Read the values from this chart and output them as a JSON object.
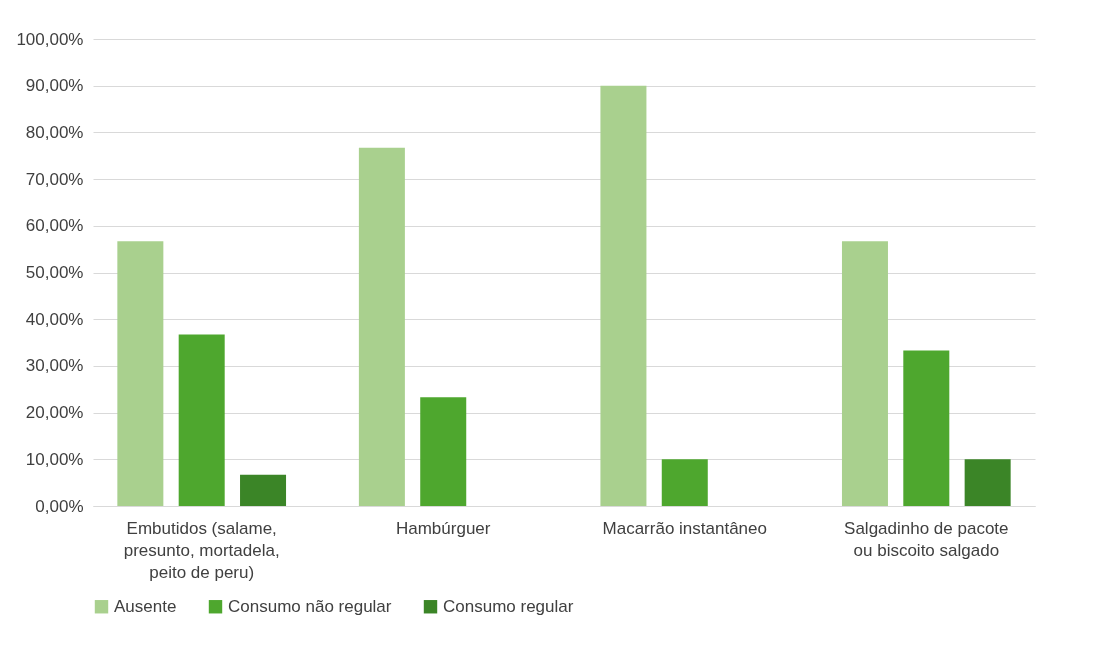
{
  "chart_data": {
    "type": "bar",
    "categories": [
      "Embutidos (salame, presunto, mortadela, peito de peru)",
      "Hambúrguer",
      "Macarrão instantâneo",
      "Salgadinho de pacote ou biscoito salgado"
    ],
    "series": [
      {
        "name": "Ausente",
        "color": "#a9d08e",
        "values": [
          56.7,
          76.7,
          90.0,
          56.7
        ]
      },
      {
        "name": "Consumo não regular",
        "color": "#4ea72e",
        "values": [
          36.7,
          23.3,
          10.0,
          33.3
        ]
      },
      {
        "name": "Consumo regular",
        "color": "#3b8527",
        "values": [
          6.7,
          0,
          0,
          10.0
        ]
      }
    ],
    "ylim": [
      0,
      100
    ],
    "yticks": [
      {
        "value": 0,
        "label": "0,00%"
      },
      {
        "value": 10,
        "label": "10,00%"
      },
      {
        "value": 20,
        "label": "20,00%"
      },
      {
        "value": 30,
        "label": "30,00%"
      },
      {
        "value": 40,
        "label": "40,00%"
      },
      {
        "value": 50,
        "label": "50,00%"
      },
      {
        "value": 60,
        "label": "60,00%"
      },
      {
        "value": 70,
        "label": "70,00%"
      },
      {
        "value": 80,
        "label": "80,00%"
      },
      {
        "value": 90,
        "label": "90,00%"
      },
      {
        "value": 100,
        "label": "100,00%"
      }
    ],
    "grid": "y",
    "legend": "bottom"
  }
}
